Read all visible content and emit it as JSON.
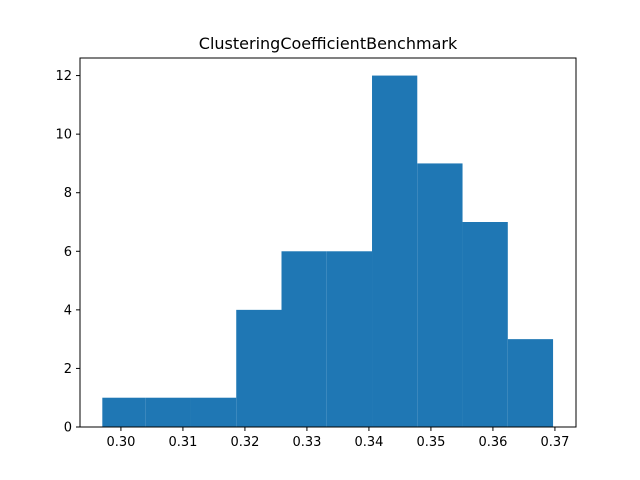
{
  "chart_data": {
    "type": "bar",
    "title": "ClusteringCoefficientBenchmark",
    "xlabel": "",
    "ylabel": "",
    "bins": [
      {
        "x0": 0.297,
        "x1": 0.304,
        "count": 1
      },
      {
        "x0": 0.304,
        "x1": 0.3113,
        "count": 1
      },
      {
        "x0": 0.3113,
        "x1": 0.3186,
        "count": 1
      },
      {
        "x0": 0.3186,
        "x1": 0.3259,
        "count": 4
      },
      {
        "x0": 0.3259,
        "x1": 0.3332,
        "count": 6
      },
      {
        "x0": 0.3332,
        "x1": 0.3405,
        "count": 6
      },
      {
        "x0": 0.3405,
        "x1": 0.3478,
        "count": 12
      },
      {
        "x0": 0.3478,
        "x1": 0.3551,
        "count": 9
      },
      {
        "x0": 0.3551,
        "x1": 0.3624,
        "count": 7
      },
      {
        "x0": 0.3624,
        "x1": 0.3697,
        "count": 3
      }
    ],
    "xlim": [
      0.2934,
      0.3734
    ],
    "ylim": [
      0,
      12.6
    ],
    "xticks": [
      0.3,
      0.31,
      0.32,
      0.33,
      0.34,
      0.35,
      0.36,
      0.37
    ],
    "xtick_labels": [
      "0.30",
      "0.31",
      "0.32",
      "0.33",
      "0.34",
      "0.35",
      "0.36",
      "0.37"
    ],
    "yticks": [
      0,
      2,
      4,
      6,
      8,
      10,
      12
    ],
    "ytick_labels": [
      "0",
      "2",
      "4",
      "6",
      "8",
      "10",
      "12"
    ],
    "grid": false,
    "bar_color": "#1f77b4"
  }
}
